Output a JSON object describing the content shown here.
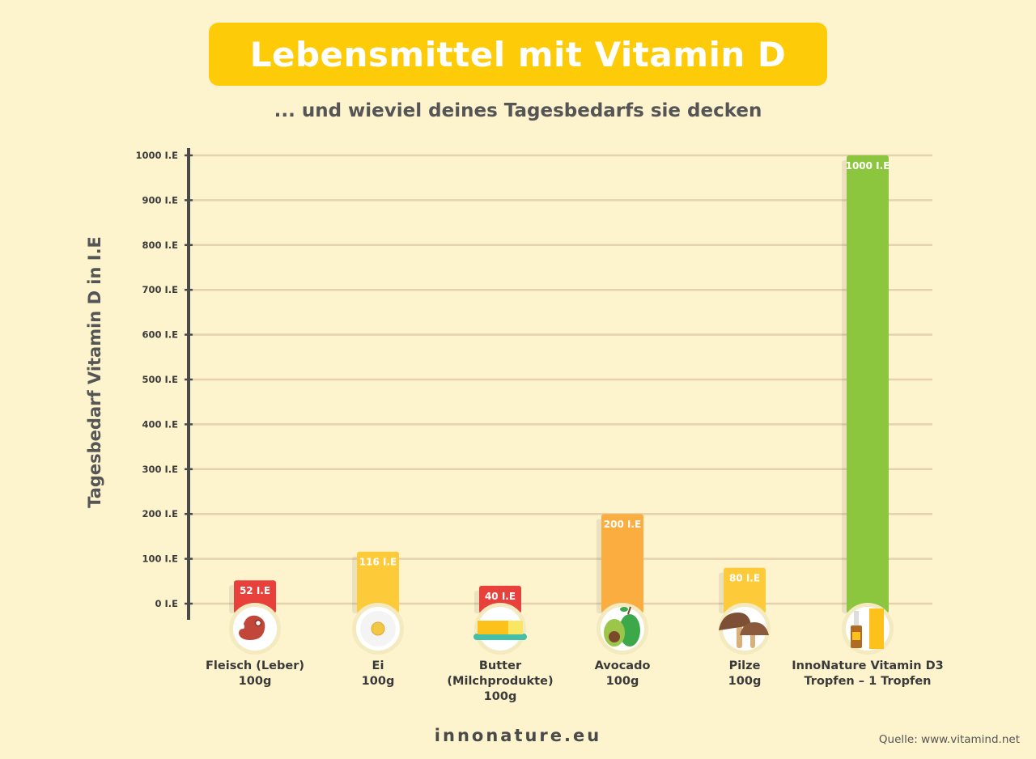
{
  "chart_data": {
    "type": "bar",
    "title": "Lebensmittel mit Vitamin D",
    "subtitle": "... und wieviel deines Tagesbedarfs sie decken",
    "ylabel": "Tagesbedarf Vitamin D in I.E",
    "xlabel": "",
    "ylim": [
      0,
      1000
    ],
    "grid": true,
    "yticks": [
      "0 I.E",
      "100 I.E",
      "200 I.E",
      "300 I.E",
      "400 I.E",
      "500 I.E",
      "600 I.E",
      "700 I.E",
      "800 I.E",
      "900 I.E",
      "1000 I.E"
    ],
    "categories": [
      "Fleisch (Leber)\n100g",
      "Ei\n100g",
      "Butter\n(Milchprodukte)\n100g",
      "Avocado\n100g",
      "Pilze\n100g",
      "InnoNature Vitamin D3\nTropfen – 1 Tropfen"
    ],
    "values": [
      52,
      116,
      40,
      200,
      80,
      1000
    ],
    "data_labels": [
      "52 I.E",
      "116 I.E",
      "40 I.E",
      "200 I.E",
      "80 I.E",
      "1000 I.E"
    ],
    "colors": [
      "#e8403a",
      "#fdcb3a",
      "#e8403a",
      "#fbae3f",
      "#fdcb3a",
      "#8cc63e"
    ],
    "icons": [
      "meat-icon",
      "fried-egg-icon",
      "butter-icon",
      "avocado-icon",
      "mushroom-icon",
      "vitamin-d3-drops-icon"
    ]
  },
  "footer": "innonature.eu",
  "source": "Quelle: www.vitamind.net"
}
